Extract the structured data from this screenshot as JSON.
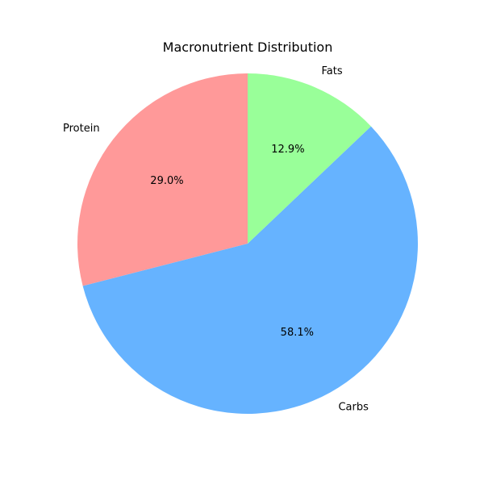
{
  "chart_data": {
    "type": "pie",
    "title": "Macronutrient Distribution",
    "categories": [
      "Protein",
      "Carbs",
      "Fats"
    ],
    "values": [
      29.0,
      58.1,
      12.9
    ],
    "value_labels": [
      "29.0%",
      "58.1%",
      "12.9%"
    ],
    "colors": [
      "#ff9999",
      "#66b3ff",
      "#99ff99"
    ],
    "start_angle_deg": 90,
    "direction": "counterclockwise",
    "legend": "none"
  }
}
